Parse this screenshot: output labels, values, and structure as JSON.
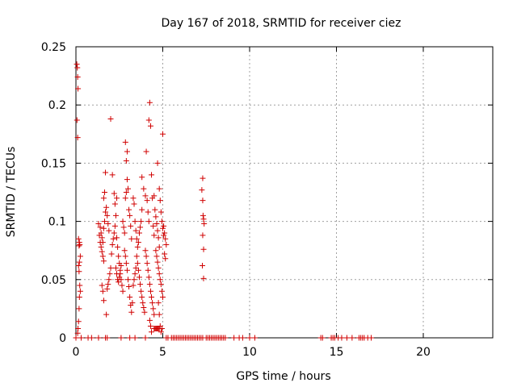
{
  "chart_data": {
    "type": "scatter",
    "title": "Day 167 of 2018, SRMTID for receiver ciez",
    "xlabel": "GPS time / hours",
    "ylabel": "SRMTID / TECUs",
    "xlim": [
      0,
      24
    ],
    "ylim": [
      0,
      0.25
    ],
    "xticks": [
      0,
      5,
      10,
      15,
      20
    ],
    "xtick_labels": [
      "0",
      "5",
      "10",
      "15",
      "20"
    ],
    "yticks": [
      0,
      0.05,
      0.1,
      0.15,
      0.2,
      0.25
    ],
    "ytick_labels": [
      "0",
      "0.05",
      "0.1",
      "0.15",
      "0.2",
      "0.25"
    ],
    "grid": true,
    "marker": "plus",
    "color": "#d00000",
    "series": [
      {
        "points": [
          [
            0.05,
            0.235
          ],
          [
            0.08,
            0.232
          ],
          [
            0.1,
            0.224
          ],
          [
            0.12,
            0.214
          ],
          [
            0.06,
            0.187
          ],
          [
            0.1,
            0.172
          ],
          [
            0.15,
            0.085
          ],
          [
            0.2,
            0.082
          ],
          [
            0.18,
            0.079
          ],
          [
            0.22,
            0.08
          ],
          [
            0.25,
            0.07
          ],
          [
            0.2,
            0.065
          ],
          [
            0.15,
            0.062
          ],
          [
            0.18,
            0.057
          ],
          [
            0.22,
            0.045
          ],
          [
            0.25,
            0.04
          ],
          [
            0.2,
            0.035
          ],
          [
            0.18,
            0.025
          ],
          [
            0.15,
            0.014
          ],
          [
            0.12,
            0.008
          ],
          [
            0.1,
            0.004
          ],
          [
            0.3,
            0.0
          ],
          [
            0.0,
            0.0
          ],
          [
            0.7,
            0.0
          ],
          [
            0.9,
            0.0
          ],
          [
            1.3,
            0.0
          ],
          [
            1.7,
            0.0
          ],
          [
            1.8,
            0.0
          ],
          [
            2.6,
            0.0
          ],
          [
            3.1,
            0.0
          ],
          [
            3.4,
            0.0
          ],
          [
            4.0,
            0.0
          ],
          [
            1.3,
            0.098
          ],
          [
            1.35,
            0.088
          ],
          [
            1.4,
            0.082
          ],
          [
            1.45,
            0.078
          ],
          [
            1.5,
            0.074
          ],
          [
            1.55,
            0.07
          ],
          [
            1.6,
            0.066
          ],
          [
            1.4,
            0.095
          ],
          [
            1.45,
            0.09
          ],
          [
            1.5,
            0.086
          ],
          [
            1.55,
            0.082
          ],
          [
            1.6,
            0.094
          ],
          [
            1.65,
            0.1
          ],
          [
            1.7,
            0.108
          ],
          [
            1.6,
            0.12
          ],
          [
            1.65,
            0.125
          ],
          [
            1.7,
            0.142
          ],
          [
            1.75,
            0.112
          ],
          [
            1.8,
            0.105
          ],
          [
            1.85,
            0.098
          ],
          [
            1.9,
            0.092
          ],
          [
            1.5,
            0.045
          ],
          [
            1.55,
            0.04
          ],
          [
            1.6,
            0.032
          ],
          [
            1.75,
            0.02
          ],
          [
            1.8,
            0.042
          ],
          [
            1.85,
            0.046
          ],
          [
            1.9,
            0.05
          ],
          [
            1.95,
            0.055
          ],
          [
            2.0,
            0.06
          ],
          [
            2.05,
            0.072
          ],
          [
            2.1,
            0.08
          ],
          [
            2.15,
            0.085
          ],
          [
            2.2,
            0.09
          ],
          [
            2.25,
            0.096
          ],
          [
            2.0,
            0.188
          ],
          [
            2.1,
            0.14
          ],
          [
            2.2,
            0.124
          ],
          [
            2.25,
            0.115
          ],
          [
            2.3,
            0.105
          ],
          [
            2.35,
            0.086
          ],
          [
            2.4,
            0.078
          ],
          [
            2.45,
            0.07
          ],
          [
            2.5,
            0.064
          ],
          [
            2.55,
            0.055
          ],
          [
            2.6,
            0.05
          ],
          [
            2.65,
            0.045
          ],
          [
            2.7,
            0.04
          ],
          [
            2.35,
            0.12
          ],
          [
            2.3,
            0.06
          ],
          [
            2.35,
            0.055
          ],
          [
            2.4,
            0.05
          ],
          [
            2.45,
            0.048
          ],
          [
            2.5,
            0.052
          ],
          [
            2.55,
            0.058
          ],
          [
            2.6,
            0.062
          ],
          [
            2.7,
            0.1
          ],
          [
            2.75,
            0.095
          ],
          [
            2.8,
            0.09
          ],
          [
            2.85,
            0.12
          ],
          [
            2.9,
            0.125
          ],
          [
            2.95,
            0.16
          ],
          [
            2.85,
            0.168
          ],
          [
            2.9,
            0.152
          ],
          [
            2.95,
            0.136
          ],
          [
            3.0,
            0.128
          ],
          [
            3.05,
            0.11
          ],
          [
            3.1,
            0.105
          ],
          [
            3.15,
            0.096
          ],
          [
            3.2,
            0.085
          ],
          [
            2.8,
            0.075
          ],
          [
            2.85,
            0.07
          ],
          [
            2.9,
            0.064
          ],
          [
            2.95,
            0.058
          ],
          [
            3.0,
            0.05
          ],
          [
            3.05,
            0.044
          ],
          [
            3.1,
            0.035
          ],
          [
            3.15,
            0.028
          ],
          [
            3.2,
            0.022
          ],
          [
            3.25,
            0.03
          ],
          [
            3.3,
            0.045
          ],
          [
            3.35,
            0.05
          ],
          [
            3.4,
            0.055
          ],
          [
            3.45,
            0.06
          ],
          [
            3.5,
            0.07
          ],
          [
            3.55,
            0.078
          ],
          [
            3.6,
            0.082
          ],
          [
            3.65,
            0.09
          ],
          [
            3.7,
            0.095
          ],
          [
            3.75,
            0.1
          ],
          [
            3.8,
            0.11
          ],
          [
            3.3,
            0.12
          ],
          [
            3.35,
            0.115
          ],
          [
            3.4,
            0.1
          ],
          [
            3.45,
            0.092
          ],
          [
            3.5,
            0.085
          ],
          [
            3.55,
            0.064
          ],
          [
            3.6,
            0.058
          ],
          [
            3.65,
            0.052
          ],
          [
            3.7,
            0.046
          ],
          [
            3.75,
            0.04
          ],
          [
            3.8,
            0.035
          ],
          [
            3.85,
            0.03
          ],
          [
            3.9,
            0.026
          ],
          [
            3.95,
            0.022
          ],
          [
            3.8,
            0.138
          ],
          [
            3.9,
            0.128
          ],
          [
            4.0,
            0.122
          ],
          [
            4.05,
            0.16
          ],
          [
            4.1,
            0.118
          ],
          [
            4.15,
            0.108
          ],
          [
            4.2,
            0.1
          ],
          [
            4.2,
            0.187
          ],
          [
            4.25,
            0.202
          ],
          [
            4.3,
            0.182
          ],
          [
            4.35,
            0.14
          ],
          [
            4.4,
            0.12
          ],
          [
            4.45,
            0.096
          ],
          [
            4.5,
            0.088
          ],
          [
            4.0,
            0.075
          ],
          [
            4.05,
            0.07
          ],
          [
            4.1,
            0.064
          ],
          [
            4.15,
            0.058
          ],
          [
            4.2,
            0.052
          ],
          [
            4.25,
            0.046
          ],
          [
            4.3,
            0.04
          ],
          [
            4.35,
            0.035
          ],
          [
            4.4,
            0.03
          ],
          [
            4.45,
            0.025
          ],
          [
            4.5,
            0.02
          ],
          [
            4.25,
            0.015
          ],
          [
            4.3,
            0.01
          ],
          [
            4.35,
            0.005
          ],
          [
            4.5,
            0.122
          ],
          [
            4.55,
            0.11
          ],
          [
            4.6,
            0.104
          ],
          [
            4.65,
            0.098
          ],
          [
            4.7,
            0.092
          ],
          [
            4.75,
            0.086
          ],
          [
            4.8,
            0.078
          ],
          [
            4.7,
            0.15
          ],
          [
            4.8,
            0.128
          ],
          [
            4.85,
            0.118
          ],
          [
            4.9,
            0.108
          ],
          [
            4.95,
            0.1
          ],
          [
            5.0,
            0.094
          ],
          [
            5.05,
            0.088
          ],
          [
            4.6,
            0.075
          ],
          [
            4.65,
            0.07
          ],
          [
            4.7,
            0.065
          ],
          [
            4.75,
            0.06
          ],
          [
            4.8,
            0.055
          ],
          [
            4.85,
            0.05
          ],
          [
            4.9,
            0.046
          ],
          [
            4.95,
            0.04
          ],
          [
            5.0,
            0.035
          ],
          [
            4.75,
            0.03
          ],
          [
            4.8,
            0.02
          ],
          [
            4.85,
            0.01
          ],
          [
            4.9,
            0.005
          ],
          [
            4.95,
            0.008
          ],
          [
            5.0,
            0.175
          ],
          [
            5.05,
            0.096
          ],
          [
            5.1,
            0.09
          ],
          [
            5.15,
            0.085
          ],
          [
            5.2,
            0.08
          ],
          [
            5.1,
            0.072
          ],
          [
            5.15,
            0.068
          ],
          [
            4.5,
            0.008
          ],
          [
            4.55,
            0.008
          ],
          [
            4.6,
            0.008
          ],
          [
            4.65,
            0.008
          ],
          [
            4.7,
            0.008
          ],
          [
            4.75,
            0.008
          ],
          [
            4.8,
            0.008
          ],
          [
            5.2,
            0.0
          ],
          [
            5.3,
            0.0
          ],
          [
            5.5,
            0.0
          ],
          [
            5.6,
            0.0
          ],
          [
            5.7,
            0.0
          ],
          [
            5.8,
            0.0
          ],
          [
            5.9,
            0.0
          ],
          [
            6.0,
            0.0
          ],
          [
            6.1,
            0.0
          ],
          [
            6.2,
            0.0
          ],
          [
            6.3,
            0.0
          ],
          [
            6.4,
            0.0
          ],
          [
            6.5,
            0.0
          ],
          [
            6.6,
            0.0
          ],
          [
            6.7,
            0.0
          ],
          [
            6.8,
            0.0
          ],
          [
            6.9,
            0.0
          ],
          [
            7.0,
            0.0
          ],
          [
            7.1,
            0.0
          ],
          [
            7.2,
            0.0
          ],
          [
            7.3,
            0.0
          ],
          [
            7.3,
            0.137
          ],
          [
            7.25,
            0.127
          ],
          [
            7.3,
            0.118
          ],
          [
            7.32,
            0.105
          ],
          [
            7.35,
            0.102
          ],
          [
            7.38,
            0.098
          ],
          [
            7.3,
            0.088
          ],
          [
            7.35,
            0.076
          ],
          [
            7.28,
            0.062
          ],
          [
            7.35,
            0.051
          ],
          [
            7.5,
            0.0
          ],
          [
            7.6,
            0.0
          ],
          [
            7.7,
            0.0
          ],
          [
            7.8,
            0.0
          ],
          [
            7.9,
            0.0
          ],
          [
            8.0,
            0.0
          ],
          [
            8.1,
            0.0
          ],
          [
            8.2,
            0.0
          ],
          [
            8.3,
            0.0
          ],
          [
            8.4,
            0.0
          ],
          [
            8.5,
            0.0
          ],
          [
            8.6,
            0.0
          ],
          [
            9.1,
            0.0
          ],
          [
            9.4,
            0.0
          ],
          [
            9.6,
            0.0
          ],
          [
            10.0,
            0.0
          ],
          [
            10.3,
            0.0
          ],
          [
            14.1,
            0.0
          ],
          [
            14.2,
            0.0
          ],
          [
            14.7,
            0.0
          ],
          [
            14.8,
            0.0
          ],
          [
            14.9,
            0.0
          ],
          [
            15.1,
            0.0
          ],
          [
            15.3,
            0.0
          ],
          [
            15.6,
            0.0
          ],
          [
            15.9,
            0.0
          ],
          [
            16.3,
            0.0
          ],
          [
            16.4,
            0.0
          ],
          [
            16.5,
            0.0
          ],
          [
            16.6,
            0.0
          ],
          [
            16.8,
            0.0
          ],
          [
            17.0,
            0.0
          ]
        ]
      }
    ]
  }
}
